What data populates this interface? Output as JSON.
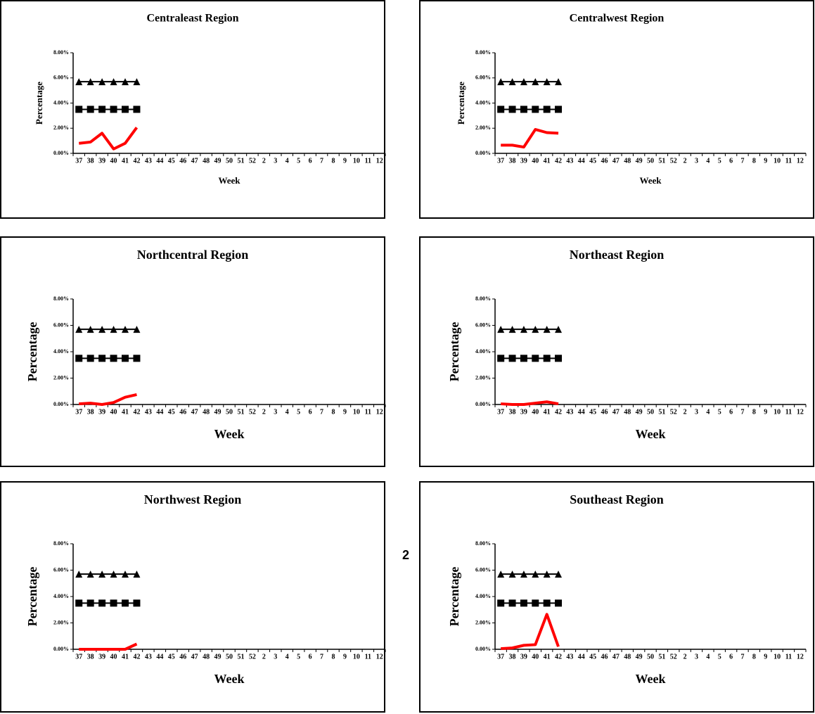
{
  "page_number": "2",
  "chart_data": [
    {
      "type": "line",
      "title": "Centraleast Region",
      "x_label": "Week",
      "y_label": "Percentage",
      "categories": [
        "37",
        "38",
        "39",
        "40",
        "41",
        "42",
        "43",
        "44",
        "45",
        "46",
        "47",
        "48",
        "49",
        "50",
        "51",
        "52",
        "2",
        "3",
        "4",
        "5",
        "6",
        "7",
        "8",
        "9",
        "10",
        "11",
        "12"
      ],
      "ylim": [
        0,
        8
      ],
      "yticks": [
        {
          "value": 0,
          "label": "0.00%"
        },
        {
          "value": 2,
          "label": "2.00%"
        },
        {
          "value": 4,
          "label": "4.00%"
        },
        {
          "value": 6,
          "label": "6.00%"
        },
        {
          "value": 8,
          "label": "8.00%"
        }
      ],
      "series": [
        {
          "color": "#000000",
          "marker": "triangle",
          "values": [
            5.7,
            5.7,
            5.7,
            5.7,
            5.7,
            5.7,
            null,
            null,
            null,
            null,
            null,
            null,
            null,
            null,
            null,
            null,
            null,
            null,
            null,
            null,
            null,
            null,
            null,
            null,
            null,
            null,
            null
          ]
        },
        {
          "color": "#000000",
          "marker": "square",
          "values": [
            3.5,
            3.5,
            3.5,
            3.5,
            3.5,
            3.5,
            null,
            null,
            null,
            null,
            null,
            null,
            null,
            null,
            null,
            null,
            null,
            null,
            null,
            null,
            null,
            null,
            null,
            null,
            null,
            null,
            null
          ]
        },
        {
          "color": "#ff0000",
          "marker": "none",
          "values": [
            0.8,
            0.9,
            1.6,
            0.35,
            0.8,
            2.05,
            null,
            null,
            null,
            null,
            null,
            null,
            null,
            null,
            null,
            null,
            null,
            null,
            null,
            null,
            null,
            null,
            null,
            null,
            null,
            null,
            null
          ]
        }
      ]
    },
    {
      "type": "line",
      "title": "Centralwest Region",
      "x_label": "Week",
      "y_label": "Percentage",
      "categories": [
        "37",
        "38",
        "39",
        "40",
        "41",
        "42",
        "43",
        "44",
        "45",
        "46",
        "47",
        "48",
        "49",
        "50",
        "51",
        "52",
        "2",
        "3",
        "4",
        "5",
        "6",
        "7",
        "8",
        "9",
        "10",
        "11",
        "12"
      ],
      "ylim": [
        0,
        8
      ],
      "yticks": [
        {
          "value": 0,
          "label": "0.00%"
        },
        {
          "value": 2,
          "label": "2.00%"
        },
        {
          "value": 4,
          "label": "4.00%"
        },
        {
          "value": 6,
          "label": "6.00%"
        },
        {
          "value": 8,
          "label": "8.00%"
        }
      ],
      "series": [
        {
          "color": "#000000",
          "marker": "triangle",
          "values": [
            5.7,
            5.7,
            5.7,
            5.7,
            5.7,
            5.7,
            null,
            null,
            null,
            null,
            null,
            null,
            null,
            null,
            null,
            null,
            null,
            null,
            null,
            null,
            null,
            null,
            null,
            null,
            null,
            null,
            null
          ]
        },
        {
          "color": "#000000",
          "marker": "square",
          "values": [
            3.5,
            3.5,
            3.5,
            3.5,
            3.5,
            3.5,
            null,
            null,
            null,
            null,
            null,
            null,
            null,
            null,
            null,
            null,
            null,
            null,
            null,
            null,
            null,
            null,
            null,
            null,
            null,
            null,
            null
          ]
        },
        {
          "color": "#ff0000",
          "marker": "none",
          "values": [
            0.65,
            0.65,
            0.5,
            1.9,
            1.65,
            1.6,
            null,
            null,
            null,
            null,
            null,
            null,
            null,
            null,
            null,
            null,
            null,
            null,
            null,
            null,
            null,
            null,
            null,
            null,
            null,
            null,
            null
          ]
        }
      ]
    },
    {
      "type": "line",
      "title": "Northcentral  Region",
      "x_label": "Week",
      "y_label": "Percentage",
      "categories": [
        "37",
        "38",
        "39",
        "40",
        "41",
        "42",
        "43",
        "44",
        "45",
        "46",
        "47",
        "48",
        "49",
        "50",
        "51",
        "52",
        "2",
        "3",
        "4",
        "5",
        "6",
        "7",
        "8",
        "9",
        "10",
        "11",
        "12"
      ],
      "ylim": [
        0,
        8
      ],
      "yticks": [
        {
          "value": 0,
          "label": "0.00%"
        },
        {
          "value": 2,
          "label": "2.00%"
        },
        {
          "value": 4,
          "label": "4.00%"
        },
        {
          "value": 6,
          "label": "6.00%"
        },
        {
          "value": 8,
          "label": "8.00%"
        }
      ],
      "series": [
        {
          "color": "#000000",
          "marker": "triangle",
          "values": [
            5.7,
            5.7,
            5.7,
            5.7,
            5.7,
            5.7,
            null,
            null,
            null,
            null,
            null,
            null,
            null,
            null,
            null,
            null,
            null,
            null,
            null,
            null,
            null,
            null,
            null,
            null,
            null,
            null,
            null
          ]
        },
        {
          "color": "#000000",
          "marker": "square",
          "values": [
            3.5,
            3.5,
            3.5,
            3.5,
            3.5,
            3.5,
            null,
            null,
            null,
            null,
            null,
            null,
            null,
            null,
            null,
            null,
            null,
            null,
            null,
            null,
            null,
            null,
            null,
            null,
            null,
            null,
            null
          ]
        },
        {
          "color": "#ff0000",
          "marker": "none",
          "values": [
            0.05,
            0.1,
            0,
            0.15,
            0.55,
            0.75,
            null,
            null,
            null,
            null,
            null,
            null,
            null,
            null,
            null,
            null,
            null,
            null,
            null,
            null,
            null,
            null,
            null,
            null,
            null,
            null,
            null
          ]
        }
      ]
    },
    {
      "type": "line",
      "title": "Northeast Region",
      "x_label": "Week",
      "y_label": "Percentage",
      "categories": [
        "37",
        "38",
        "39",
        "40",
        "41",
        "42",
        "43",
        "44",
        "45",
        "46",
        "47",
        "48",
        "49",
        "50",
        "51",
        "52",
        "2",
        "3",
        "4",
        "5",
        "6",
        "7",
        "8",
        "9",
        "10",
        "11",
        "12"
      ],
      "ylim": [
        0,
        8
      ],
      "yticks": [
        {
          "value": 0,
          "label": "0.00%"
        },
        {
          "value": 2,
          "label": "2.00%"
        },
        {
          "value": 4,
          "label": "4.00%"
        },
        {
          "value": 6,
          "label": "6.00%"
        },
        {
          "value": 8,
          "label": "8.00%"
        }
      ],
      "series": [
        {
          "color": "#000000",
          "marker": "triangle",
          "values": [
            5.7,
            5.7,
            5.7,
            5.7,
            5.7,
            5.7,
            null,
            null,
            null,
            null,
            null,
            null,
            null,
            null,
            null,
            null,
            null,
            null,
            null,
            null,
            null,
            null,
            null,
            null,
            null,
            null,
            null
          ]
        },
        {
          "color": "#000000",
          "marker": "square",
          "values": [
            3.5,
            3.5,
            3.5,
            3.5,
            3.5,
            3.5,
            null,
            null,
            null,
            null,
            null,
            null,
            null,
            null,
            null,
            null,
            null,
            null,
            null,
            null,
            null,
            null,
            null,
            null,
            null,
            null,
            null
          ]
        },
        {
          "color": "#ff0000",
          "marker": "none",
          "values": [
            0.05,
            0,
            0,
            0.1,
            0.2,
            0.05,
            null,
            null,
            null,
            null,
            null,
            null,
            null,
            null,
            null,
            null,
            null,
            null,
            null,
            null,
            null,
            null,
            null,
            null,
            null,
            null,
            null
          ]
        }
      ]
    },
    {
      "type": "line",
      "title": "Northwest Region",
      "x_label": "Week",
      "y_label": "Percentage",
      "categories": [
        "37",
        "38",
        "39",
        "40",
        "41",
        "42",
        "43",
        "44",
        "45",
        "46",
        "47",
        "48",
        "49",
        "50",
        "51",
        "52",
        "2",
        "3",
        "4",
        "5",
        "6",
        "7",
        "8",
        "9",
        "10",
        "11",
        "12"
      ],
      "ylim": [
        0,
        8
      ],
      "yticks": [
        {
          "value": 0,
          "label": "0.00%"
        },
        {
          "value": 2,
          "label": "2.00%"
        },
        {
          "value": 4,
          "label": "4.00%"
        },
        {
          "value": 6,
          "label": "6.00%"
        },
        {
          "value": 8,
          "label": "8.00%"
        }
      ],
      "series": [
        {
          "color": "#000000",
          "marker": "triangle",
          "values": [
            5.7,
            5.7,
            5.7,
            5.7,
            5.7,
            5.7,
            null,
            null,
            null,
            null,
            null,
            null,
            null,
            null,
            null,
            null,
            null,
            null,
            null,
            null,
            null,
            null,
            null,
            null,
            null,
            null,
            null
          ]
        },
        {
          "color": "#000000",
          "marker": "square",
          "values": [
            3.5,
            3.5,
            3.5,
            3.5,
            3.5,
            3.5,
            null,
            null,
            null,
            null,
            null,
            null,
            null,
            null,
            null,
            null,
            null,
            null,
            null,
            null,
            null,
            null,
            null,
            null,
            null,
            null,
            null
          ]
        },
        {
          "color": "#ff0000",
          "marker": "none",
          "values": [
            0,
            0,
            0,
            0,
            0,
            0.4,
            null,
            null,
            null,
            null,
            null,
            null,
            null,
            null,
            null,
            null,
            null,
            null,
            null,
            null,
            null,
            null,
            null,
            null,
            null,
            null,
            null
          ]
        }
      ]
    },
    {
      "type": "line",
      "title": "Southeast Region",
      "x_label": "Week",
      "y_label": "Percentage",
      "categories": [
        "37",
        "38",
        "39",
        "40",
        "41",
        "42",
        "43",
        "44",
        "45",
        "46",
        "47",
        "48",
        "49",
        "50",
        "51",
        "52",
        "2",
        "3",
        "4",
        "5",
        "6",
        "7",
        "8",
        "9",
        "10",
        "11",
        "12"
      ],
      "ylim": [
        0,
        8
      ],
      "yticks": [
        {
          "value": 0,
          "label": "0.00%"
        },
        {
          "value": 2,
          "label": "2.00%"
        },
        {
          "value": 4,
          "label": "4.00%"
        },
        {
          "value": 6,
          "label": "6.00%"
        },
        {
          "value": 8,
          "label": "8.00%"
        }
      ],
      "series": [
        {
          "color": "#000000",
          "marker": "triangle",
          "values": [
            5.7,
            5.7,
            5.7,
            5.7,
            5.7,
            5.7,
            null,
            null,
            null,
            null,
            null,
            null,
            null,
            null,
            null,
            null,
            null,
            null,
            null,
            null,
            null,
            null,
            null,
            null,
            null,
            null,
            null
          ]
        },
        {
          "color": "#000000",
          "marker": "square",
          "values": [
            3.5,
            3.5,
            3.5,
            3.5,
            3.5,
            3.5,
            null,
            null,
            null,
            null,
            null,
            null,
            null,
            null,
            null,
            null,
            null,
            null,
            null,
            null,
            null,
            null,
            null,
            null,
            null,
            null,
            null
          ]
        },
        {
          "color": "#ff0000",
          "marker": "none",
          "values": [
            0.05,
            0.1,
            0.3,
            0.35,
            2.65,
            0.2,
            null,
            null,
            null,
            null,
            null,
            null,
            null,
            null,
            null,
            null,
            null,
            null,
            null,
            null,
            null,
            null,
            null,
            null,
            null,
            null,
            null
          ]
        }
      ]
    }
  ]
}
